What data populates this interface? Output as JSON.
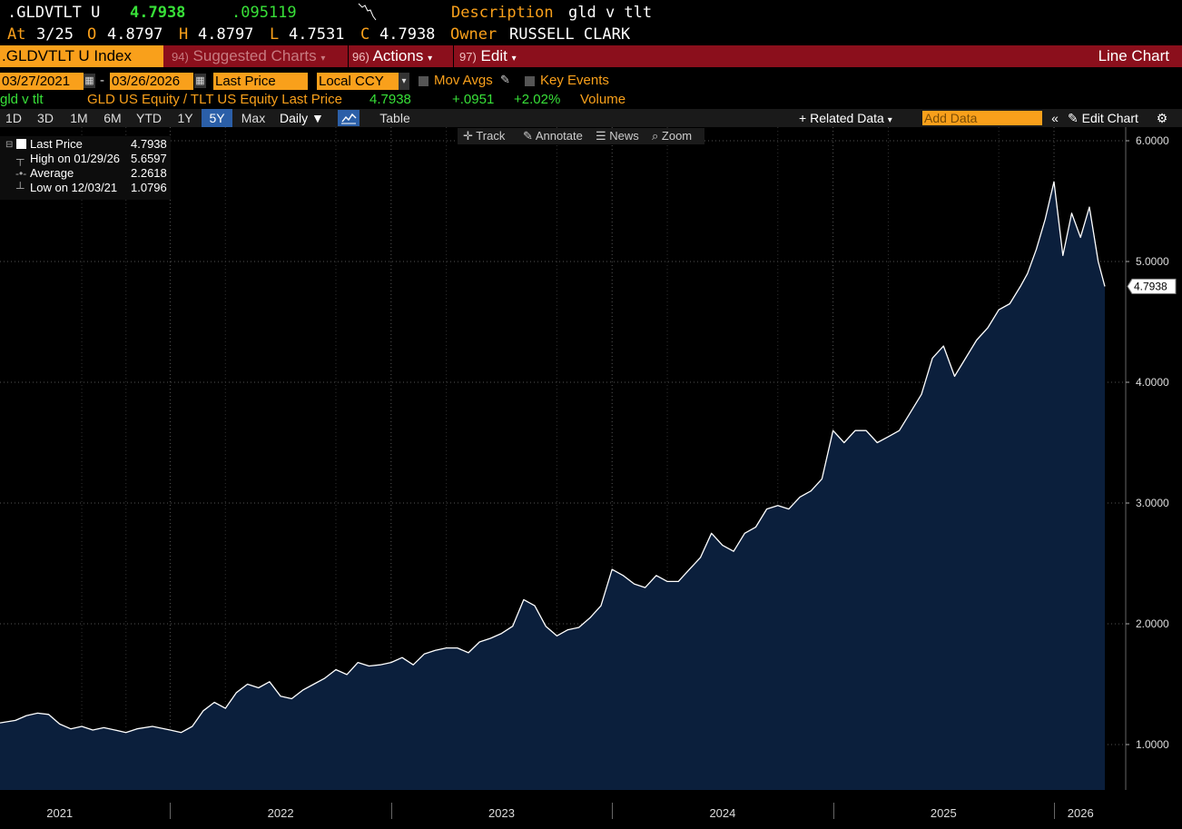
{
  "header": {
    "ticker": ".GLDVTLT U",
    "last": "4.7938",
    "change": ".095119",
    "description_label": "Description",
    "description_value": "gld v tlt",
    "at_label": "At",
    "at_value": "3/25",
    "o_label": "O",
    "o_value": "4.8797",
    "h_label": "H",
    "h_value": "4.8797",
    "l_label": "L",
    "l_value": "4.7531",
    "c_label": "C",
    "c_value": "4.7938",
    "owner_label": "Owner",
    "owner_value": "RUSSELL CLARK"
  },
  "toolbar": {
    "security": ".GLDVTLT U Index",
    "suggested_num": "94)",
    "suggested": "Suggested Charts",
    "actions_num": "96)",
    "actions": "Actions",
    "edit_num": "97)",
    "edit": "Edit",
    "chart_type": "Line Chart"
  },
  "controls": {
    "start_date": "03/27/2021",
    "end_date": "03/26/2026",
    "dash": "-",
    "field": "Last Price",
    "currency": "Local CCY",
    "mov_avgs": "Mov Avgs",
    "key_events": "Key Events"
  },
  "series_row": {
    "name": "gld v tlt",
    "desc": "GLD US Equity / TLT US Equity Last Price",
    "value": "4.7938",
    "change": "+.0951",
    "pct": "+2.02%",
    "volume": "Volume"
  },
  "ranges": {
    "r1d": "1D",
    "r3d": "3D",
    "r1m": "1M",
    "r6m": "6M",
    "rytd": "YTD",
    "r1y": "1Y",
    "r5y": "5Y",
    "rmax": "Max",
    "freq": "Daily",
    "table": "Table",
    "related": "Related Data",
    "add_data": "Add Data",
    "edit_chart": "Edit Chart"
  },
  "chart_tools": {
    "track": "Track",
    "annotate": "Annotate",
    "news": "News",
    "zoom": "Zoom"
  },
  "legend": {
    "last_label": "Last Price",
    "last_value": "4.7938",
    "high_label": "High on 01/29/26",
    "high_value": "5.6597",
    "avg_label": "Average",
    "avg_value": "2.2618",
    "low_label": "Low on 12/03/21",
    "low_value": "1.0796"
  },
  "colors": {
    "orange": "#f9a01b",
    "fill": "#0b1f3c",
    "line": "#ffffff",
    "green": "#4bd14b",
    "red_bar": "#8b0f1c"
  },
  "chart_data": {
    "type": "area",
    "title": "gld v tlt",
    "ylim": [
      0.63,
      6.1
    ],
    "yticks": [
      "1.0000",
      "2.0000",
      "3.0000",
      "4.0000",
      "5.0000",
      "6.0000"
    ],
    "ytick_values": [
      1,
      2,
      3,
      4,
      5,
      6
    ],
    "xticks": [
      "2021",
      "2022",
      "2023",
      "2024",
      "2025",
      "2026"
    ],
    "xtick_dates": [
      2021.5,
      2022.5,
      2023.5,
      2024.5,
      2025.5,
      2026.12
    ],
    "x_start": 2021.23,
    "x_end": 2026.23,
    "last_label": "4.7938",
    "series": [
      {
        "name": "GLD US Equity / TLT US Equity Last Price",
        "x": [
          2021.23,
          2021.3,
          2021.35,
          2021.4,
          2021.45,
          2021.5,
          2021.55,
          2021.6,
          2021.65,
          2021.7,
          2021.75,
          2021.8,
          2021.85,
          2021.92,
          2022.0,
          2022.05,
          2022.1,
          2022.15,
          2022.2,
          2022.25,
          2022.3,
          2022.35,
          2022.4,
          2022.45,
          2022.5,
          2022.55,
          2022.6,
          2022.65,
          2022.7,
          2022.75,
          2022.8,
          2022.85,
          2022.9,
          2022.95,
          2023.0,
          2023.05,
          2023.1,
          2023.15,
          2023.2,
          2023.25,
          2023.3,
          2023.35,
          2023.4,
          2023.45,
          2023.5,
          2023.55,
          2023.6,
          2023.65,
          2023.7,
          2023.75,
          2023.8,
          2023.85,
          2023.9,
          2023.95,
          2024.0,
          2024.05,
          2024.1,
          2024.15,
          2024.2,
          2024.25,
          2024.3,
          2024.35,
          2024.4,
          2024.45,
          2024.5,
          2024.55,
          2024.6,
          2024.65,
          2024.7,
          2024.75,
          2024.8,
          2024.85,
          2024.9,
          2024.95,
          2025.0,
          2025.05,
          2025.1,
          2025.15,
          2025.2,
          2025.25,
          2025.3,
          2025.35,
          2025.4,
          2025.45,
          2025.5,
          2025.55,
          2025.6,
          2025.65,
          2025.7,
          2025.75,
          2025.8,
          2025.85,
          2025.88,
          2025.92,
          2025.96,
          2026.0,
          2026.04,
          2026.08,
          2026.12,
          2026.16,
          2026.2,
          2026.23
        ],
        "y": [
          1.18,
          1.2,
          1.24,
          1.26,
          1.25,
          1.17,
          1.13,
          1.15,
          1.12,
          1.14,
          1.12,
          1.1,
          1.13,
          1.15,
          1.12,
          1.1,
          1.15,
          1.28,
          1.35,
          1.3,
          1.43,
          1.5,
          1.47,
          1.52,
          1.4,
          1.38,
          1.45,
          1.5,
          1.55,
          1.62,
          1.58,
          1.68,
          1.65,
          1.66,
          1.68,
          1.72,
          1.66,
          1.75,
          1.78,
          1.8,
          1.8,
          1.76,
          1.85,
          1.88,
          1.92,
          1.98,
          2.2,
          2.15,
          1.98,
          1.9,
          1.95,
          1.97,
          2.05,
          2.15,
          2.45,
          2.4,
          2.33,
          2.3,
          2.4,
          2.35,
          2.35,
          2.45,
          2.55,
          2.75,
          2.65,
          2.6,
          2.75,
          2.8,
          2.95,
          2.98,
          2.95,
          3.05,
          3.1,
          3.2,
          3.6,
          3.5,
          3.6,
          3.6,
          3.5,
          3.55,
          3.6,
          3.75,
          3.9,
          4.2,
          4.3,
          4.05,
          4.2,
          4.35,
          4.45,
          4.6,
          4.65,
          4.8,
          4.9,
          5.1,
          5.35,
          5.66,
          5.05,
          5.4,
          5.2,
          5.45,
          5.0,
          4.7938
        ]
      }
    ]
  }
}
